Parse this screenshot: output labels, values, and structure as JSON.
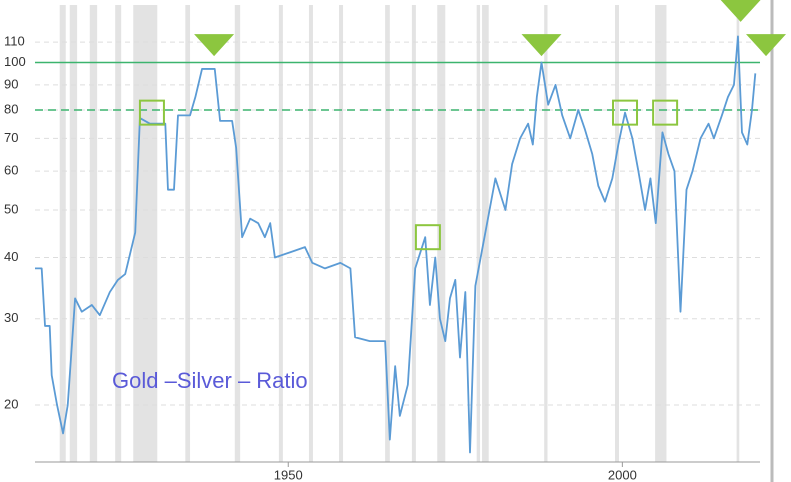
{
  "chart_data": {
    "type": "line",
    "annotation": "Gold –Silver – Ratio",
    "log_scale": true,
    "grid": true,
    "xlim": [
      1912.1,
      2020.6
    ],
    "xticks": [
      1950,
      2000
    ],
    "ylim": [
      15.3,
      131
    ],
    "yticks": [
      20,
      30,
      40,
      50,
      60,
      70,
      80,
      90,
      100,
      110
    ],
    "series": [
      {
        "color": "#5b9bd5",
        "x": [
          1912.1,
          1913.1,
          1913.6,
          1914.3,
          1914.6,
          1915.4,
          1916.3,
          1917,
          1918.1,
          1919.1,
          1920.6,
          1921.8,
          1923.3,
          1924.5,
          1925.6,
          1927.1,
          1927.8,
          1929.3,
          1931.6,
          1932,
          1932.9,
          1933.5,
          1935.3,
          1936.1,
          1937.1,
          1939,
          1939.8,
          1941.6,
          1942.2,
          1943.1,
          1944.3,
          1945.5,
          1946.5,
          1947.3,
          1948,
          1950.3,
          1952.5,
          1953.6,
          1955.5,
          1957.8,
          1959.3,
          1960,
          1962.2,
          1964.5,
          1965.2,
          1966,
          1966.7,
          1967.9,
          1969,
          1970.5,
          1971.2,
          1972,
          1972.7,
          1973.5,
          1974.2,
          1975,
          1975.7,
          1976.5,
          1977.2,
          1978,
          1979.5,
          1981,
          1982.5,
          1983.5,
          1984.7,
          1985.9,
          1986.6,
          1987.2,
          1987.9,
          1988.9,
          1990,
          1991,
          1992.2,
          1993.4,
          1994.4,
          1995.5,
          1996.4,
          1997.4,
          1998.5,
          1999.4,
          2000.4,
          2001.5,
          2002.4,
          2003.4,
          2004.2,
          2005,
          2006,
          2006.9,
          2007.8,
          2008.7,
          2009.6,
          2010.5,
          2011.7,
          2012.9,
          2013.7,
          2014.9,
          2015.8,
          2016.7,
          2017.3,
          2017.9,
          2018.7,
          2019.4,
          2019.9
        ],
        "values": [
          38,
          38,
          29,
          29,
          23,
          20,
          17.5,
          20,
          33,
          31,
          32,
          30.5,
          34,
          36,
          37,
          45,
          77,
          75,
          75,
          55,
          55,
          78,
          78,
          85,
          97,
          97,
          76,
          76,
          67,
          44,
          48,
          47,
          44,
          47,
          40,
          41,
          42,
          39,
          38,
          39,
          38,
          27.5,
          27,
          27,
          17,
          24,
          19,
          22,
          38,
          44,
          32,
          40,
          30,
          27,
          33,
          36,
          25,
          34,
          16,
          35,
          45,
          58,
          50,
          62,
          70,
          75,
          68,
          85,
          100,
          82,
          90,
          78,
          70,
          80,
          73,
          65,
          56,
          52,
          58,
          68,
          79,
          70,
          60,
          50,
          58,
          47,
          72,
          65,
          60,
          31,
          55,
          60,
          70,
          75,
          70,
          78,
          85,
          90,
          113,
          72,
          68,
          80,
          95
        ]
      }
    ],
    "recessions": [
      [
        1915.8,
        1916.7
      ],
      [
        1917.3,
        1918.4
      ],
      [
        1920.3,
        1921.4
      ],
      [
        1924.1,
        1925
      ],
      [
        1926.8,
        1930.4
      ],
      [
        1934.6,
        1935.3
      ],
      [
        1942,
        1942.8
      ],
      [
        1948.6,
        1949.2
      ],
      [
        1953.1,
        1953.7
      ],
      [
        1957.6,
        1958.2
      ],
      [
        1964.5,
        1965.2
      ],
      [
        1968.5,
        1969.1
      ],
      [
        1972.3,
        1973.5
      ],
      [
        1978.2,
        1978.7
      ],
      [
        1979,
        1980
      ],
      [
        1988.3,
        1988.8
      ],
      [
        1998.9,
        1999.5
      ],
      [
        2004.9,
        2006.6
      ],
      [
        2017.1,
        2017.5
      ]
    ],
    "reference_lines": [
      {
        "value": 100,
        "style": "solid",
        "color": "#3cb46e"
      },
      {
        "value": 80,
        "style": "dashed",
        "color": "#3cb46e"
      }
    ],
    "markers": [
      {
        "shape": "triangle",
        "x": 1938.9,
        "y": 109
      },
      {
        "shape": "triangle",
        "x": 1987.9,
        "y": 109
      },
      {
        "shape": "triangle",
        "x": 2017.7,
        "y": 128
      },
      {
        "shape": "triangle",
        "x": 2021.5,
        "y": 109
      },
      {
        "shape": "square",
        "x": 1929.6,
        "y": 79
      },
      {
        "shape": "square",
        "x": 1970.9,
        "y": 44
      },
      {
        "shape": "square",
        "x": 2000.4,
        "y": 79
      },
      {
        "shape": "square",
        "x": 2006.4,
        "y": 79
      }
    ],
    "marker_color": "#8cc63f"
  }
}
